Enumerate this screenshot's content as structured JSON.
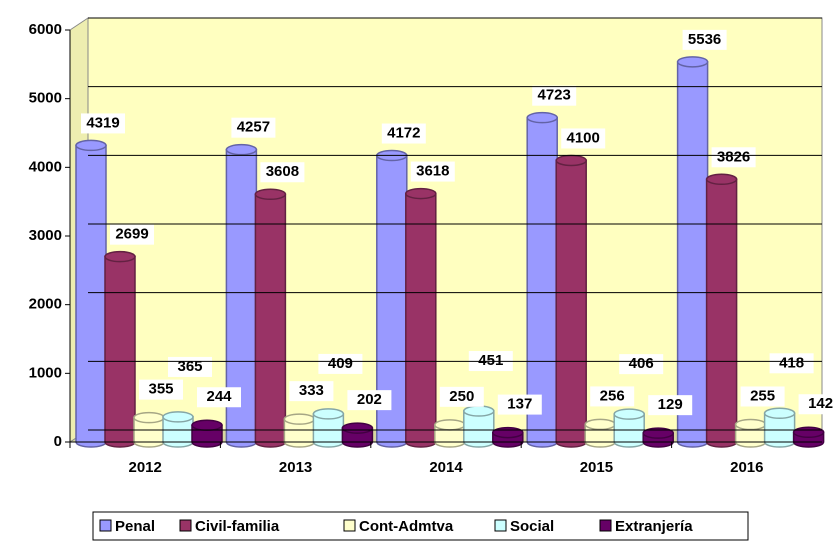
{
  "chart_data": {
    "type": "bar",
    "categories": [
      "2012",
      "2013",
      "2014",
      "2015",
      "2016"
    ],
    "series": [
      {
        "name": "Penal",
        "color": "#9999ff",
        "values": [
          4319,
          4257,
          4172,
          4723,
          5536
        ]
      },
      {
        "name": "Civil-familia",
        "color": "#993366",
        "values": [
          2699,
          3608,
          3618,
          4100,
          3826
        ]
      },
      {
        "name": "Cont-Admtva",
        "color": "#ffffcc",
        "values": [
          355,
          333,
          250,
          256,
          255
        ]
      },
      {
        "name": "Social",
        "color": "#ccffff",
        "values": [
          365,
          409,
          451,
          406,
          418
        ]
      },
      {
        "name": "Extranjería",
        "color": "#660066",
        "values": [
          244,
          202,
          137,
          129,
          142
        ]
      }
    ],
    "ylim": [
      0,
      6000
    ],
    "yticks": [
      0,
      1000,
      2000,
      3000,
      4000,
      5000,
      6000
    ],
    "grid": true,
    "legend": "bottom"
  }
}
